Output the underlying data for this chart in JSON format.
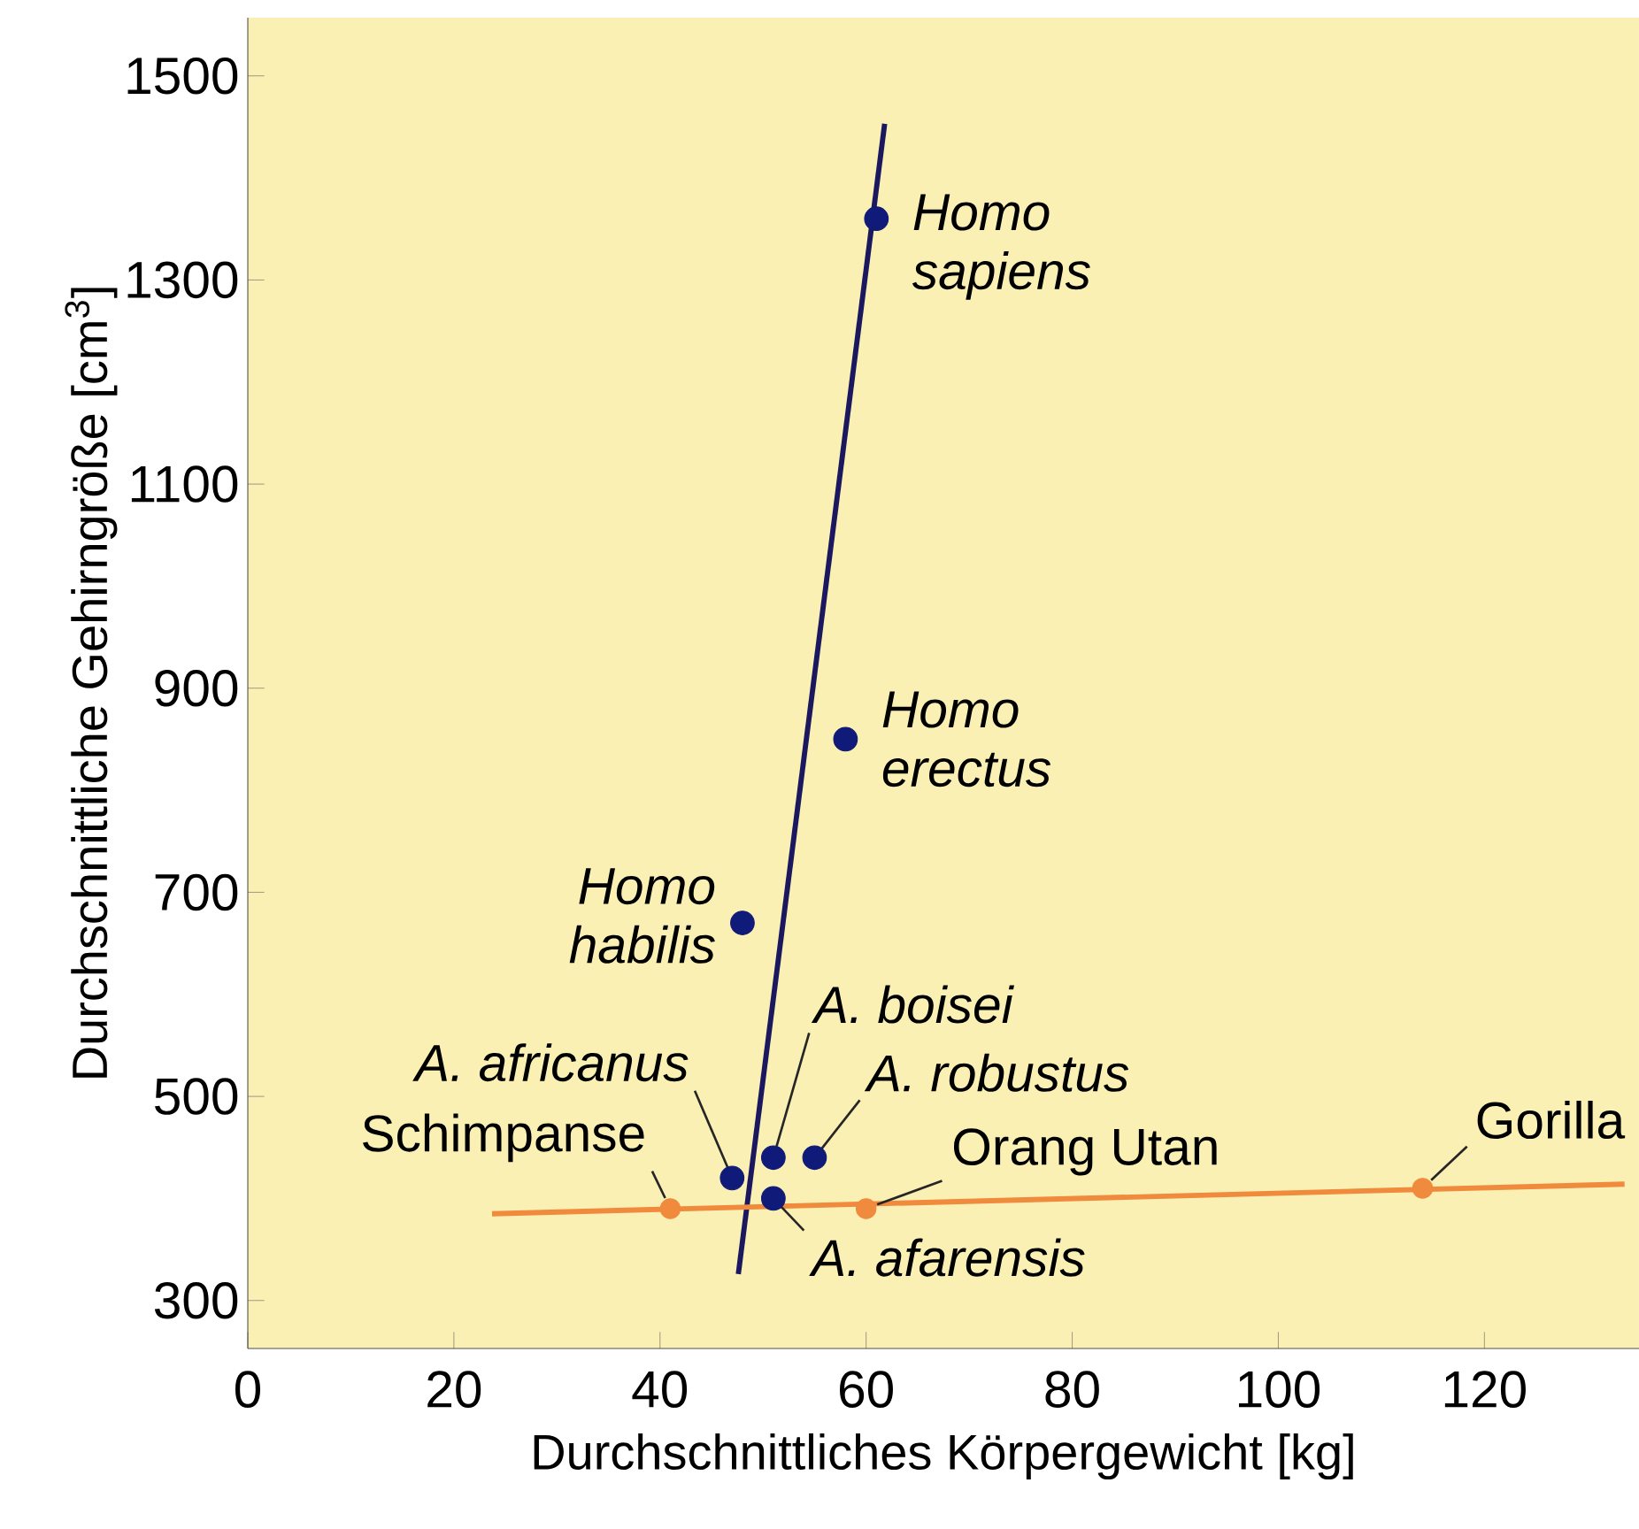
{
  "chart_data": {
    "type": "scatter",
    "xlabel": "Durchschnittliches Körpergewicht [kg]",
    "ylabel": "Durchschnittliche Gehirngröße [cm$^{3}$]",
    "xlim": [
      0,
      135
    ],
    "ylim": [
      253,
      1557
    ],
    "xticks": [
      0,
      20,
      40,
      60,
      80,
      100,
      120
    ],
    "yticks": [
      300,
      500,
      700,
      900,
      1100,
      1300,
      1500
    ],
    "series": [
      {
        "marker": "circle",
        "color": "#101a78",
        "x": [
          61,
          58,
          48,
          47,
          51,
          55,
          51
        ],
        "values": [
          1360,
          850,
          670,
          420,
          440,
          440,
          400
        ]
      },
      {
        "marker": "circle",
        "color": "#f08a3c",
        "x": [
          41,
          60,
          114
        ],
        "values": [
          390,
          390,
          410
        ]
      },
      {
        "type": "line",
        "marker": "none",
        "color": "#1c1860",
        "x": [
          47.6,
          61.8
        ],
        "values": [
          326,
          1453
        ]
      },
      {
        "type": "line",
        "marker": "none",
        "color": "#f08a3c",
        "x": [
          23.7,
          133.6
        ],
        "values": [
          385,
          414
        ]
      }
    ],
    "annotations": [
      {
        "text": "Homo sapiens",
        "x": 61,
        "y": 1360
      },
      {
        "text": "Homo erectus",
        "x": 58,
        "y": 850
      },
      {
        "text": "Homo habilis",
        "x": 48,
        "y": 670
      },
      {
        "text": "A. africanus",
        "x": 47,
        "y": 420
      },
      {
        "text": "A. boisei",
        "x": 51,
        "y": 440
      },
      {
        "text": "A. robustus",
        "x": 55,
        "y": 440
      },
      {
        "text": "A. afarensis",
        "x": 51,
        "y": 400
      },
      {
        "text": "Schimpanse",
        "x": 41,
        "y": 390
      },
      {
        "text": "Orang Utan",
        "x": 60,
        "y": 390
      },
      {
        "text": "Gorilla",
        "x": 114,
        "y": 410
      }
    ]
  }
}
